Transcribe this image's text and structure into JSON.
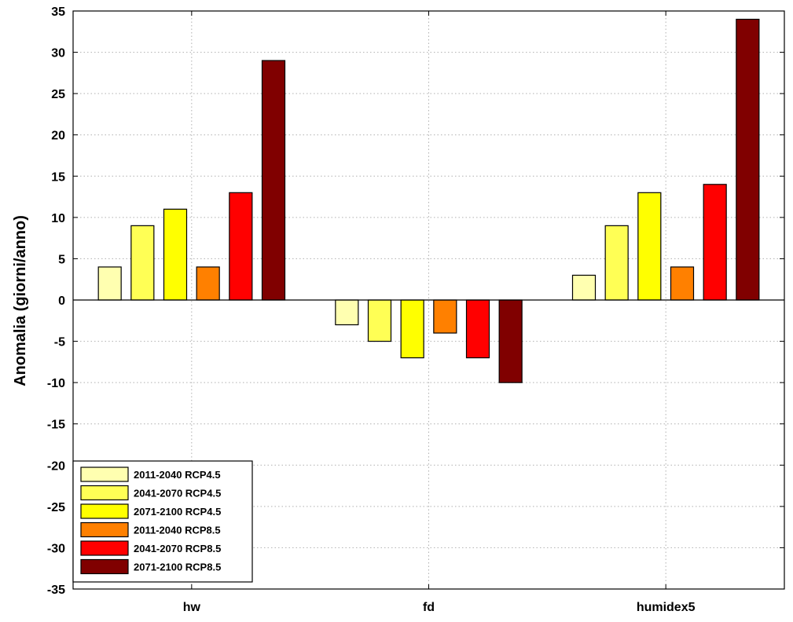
{
  "chart_data": {
    "type": "bar",
    "ylabel": "Anomalia (giorni/anno)",
    "xlabel": "",
    "title": "",
    "ylim": [
      -35,
      35
    ],
    "yticks": [
      "35",
      "30",
      "25",
      "20",
      "15",
      "10",
      "5",
      "0",
      "-5",
      "-10",
      "-15",
      "-20",
      "-25",
      "-30",
      "-35"
    ],
    "categories": [
      "hw",
      "fd",
      "humidex5"
    ],
    "grid": true,
    "legend_position": "bottom-left",
    "series": [
      {
        "name": "2011-2040 RCP4.5",
        "color": "#ffffb0",
        "values": [
          4,
          -3,
          3
        ]
      },
      {
        "name": "2041-2070 RCP4.5",
        "color": "#ffff55",
        "values": [
          9,
          -5,
          9
        ]
      },
      {
        "name": "2071-2100 RCP4.5",
        "color": "#ffff00",
        "values": [
          11,
          -7,
          13
        ]
      },
      {
        "name": "2011-2040 RCP8.5",
        "color": "#ff8000",
        "values": [
          4,
          -4,
          4
        ]
      },
      {
        "name": "2041-2070 RCP8.5",
        "color": "#ff0000",
        "values": [
          13,
          -7,
          14
        ]
      },
      {
        "name": "2071-2100 RCP8.5",
        "color": "#800000",
        "values": [
          29,
          -10,
          34
        ]
      }
    ]
  }
}
